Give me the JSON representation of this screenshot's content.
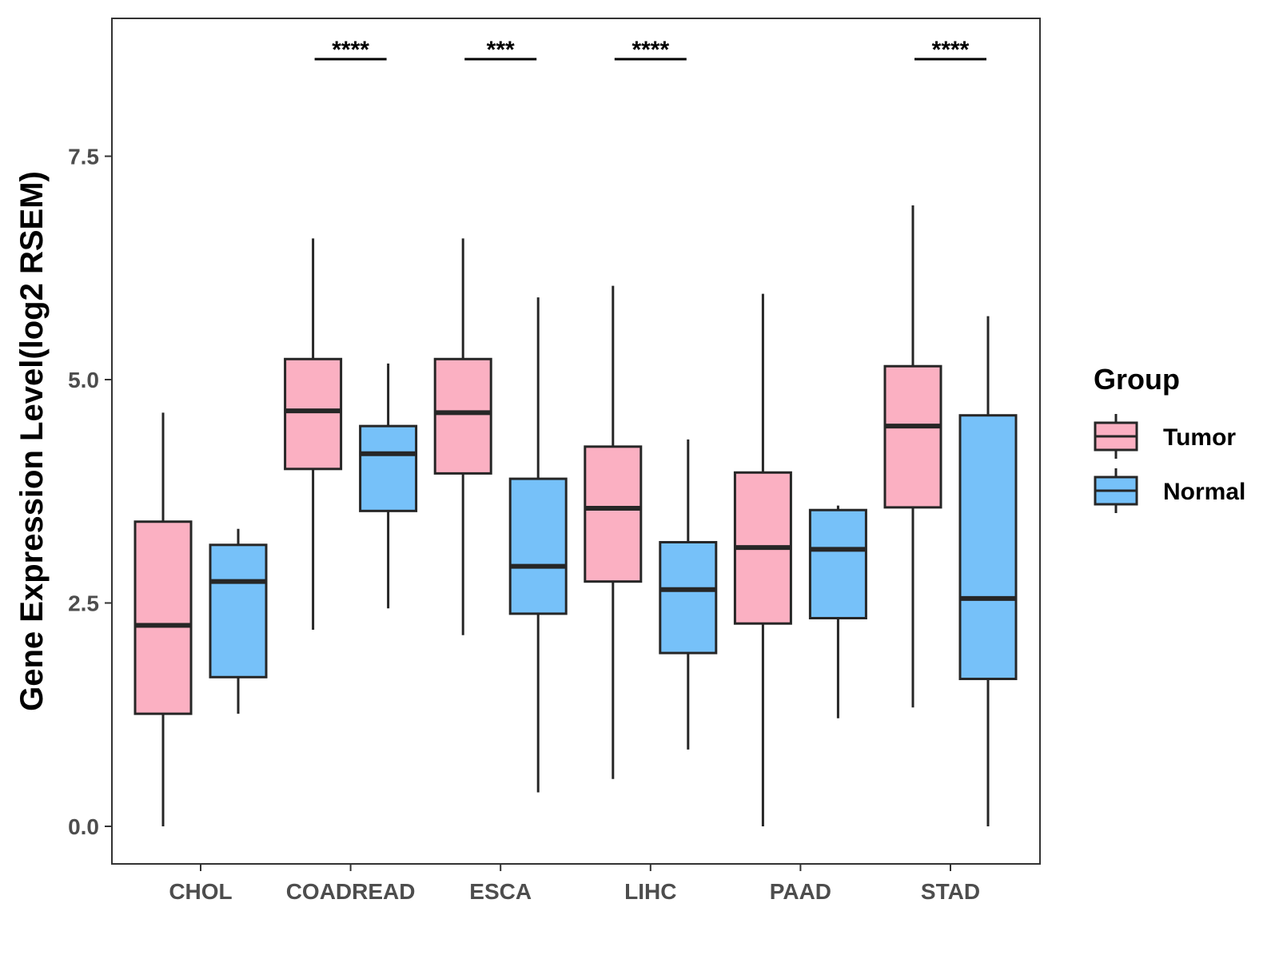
{
  "chart_data": {
    "type": "boxplot",
    "title": "",
    "xlabel": "",
    "ylabel": "Gene Expression Level(log2 RSEM)",
    "ylim": [
      -0.4,
      9.0
    ],
    "yticks": [
      0.0,
      2.5,
      5.0,
      7.5
    ],
    "ytick_labels": [
      "0.0",
      "2.5",
      "5.0",
      "7.5"
    ],
    "grid": false,
    "categories": [
      "CHOL",
      "COADREAD",
      "ESCA",
      "LIHC",
      "PAAD",
      "STAD"
    ],
    "series": [
      {
        "name": "Tumor",
        "color": "#FBB0C2",
        "boxes": [
          {
            "min": 0.0,
            "q1": 1.26,
            "median": 2.25,
            "q3": 3.41,
            "max": 4.63
          },
          {
            "min": 2.2,
            "q1": 4.0,
            "median": 4.65,
            "q3": 5.23,
            "max": 6.58
          },
          {
            "min": 2.14,
            "q1": 3.95,
            "median": 4.63,
            "q3": 5.23,
            "max": 6.58
          },
          {
            "min": 0.53,
            "q1": 2.74,
            "median": 3.56,
            "q3": 4.25,
            "max": 6.05
          },
          {
            "min": 0.0,
            "q1": 2.27,
            "median": 3.12,
            "q3": 3.96,
            "max": 5.96
          },
          {
            "min": 1.33,
            "q1": 3.57,
            "median": 4.48,
            "q3": 5.15,
            "max": 6.95
          }
        ]
      },
      {
        "name": "Normal",
        "color": "#76C1F9",
        "boxes": [
          {
            "min": 1.26,
            "q1": 1.67,
            "median": 2.74,
            "q3": 3.15,
            "max": 3.33
          },
          {
            "min": 2.44,
            "q1": 3.53,
            "median": 4.17,
            "q3": 4.48,
            "max": 5.18
          },
          {
            "min": 0.38,
            "q1": 2.38,
            "median": 2.91,
            "q3": 3.89,
            "max": 5.92
          },
          {
            "min": 0.86,
            "q1": 1.94,
            "median": 2.65,
            "q3": 3.18,
            "max": 4.33
          },
          {
            "min": 1.21,
            "q1": 2.33,
            "median": 3.1,
            "q3": 3.54,
            "max": 3.59
          },
          {
            "min": 0.0,
            "q1": 1.65,
            "median": 2.55,
            "q3": 4.6,
            "max": 5.71
          }
        ]
      }
    ],
    "annotations": [
      {
        "category": "COADREAD",
        "label": "****"
      },
      {
        "category": "ESCA",
        "label": "***"
      },
      {
        "category": "LIHC",
        "label": "****"
      },
      {
        "category": "STAD",
        "label": "****"
      }
    ],
    "legend": {
      "title": "Group",
      "placement": "right",
      "entries": [
        "Tumor",
        "Normal"
      ]
    }
  }
}
